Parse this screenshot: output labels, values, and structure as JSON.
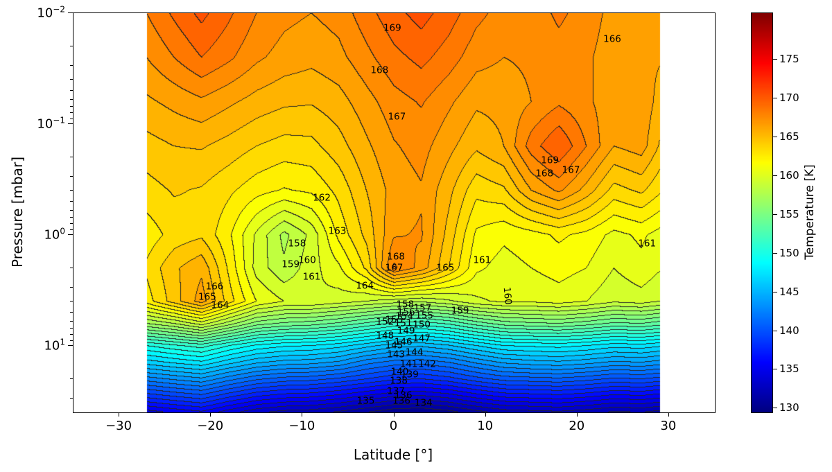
{
  "figure": {
    "background": "#ffffff",
    "contour_line_color": "#262626"
  },
  "chart_data": {
    "type": "heatmap",
    "title": "",
    "xlabel": "Latitude [°]",
    "ylabel": "Pressure [mbar]",
    "colorbar_label": "Temperature [K]",
    "x_axis": {
      "lim": [
        -35,
        35
      ],
      "ticks": [
        -30,
        -20,
        -10,
        0,
        10,
        20,
        30
      ],
      "tick_labels": [
        "−30",
        "−20",
        "−10",
        "0",
        "10",
        "20",
        "30"
      ]
    },
    "y_axis": {
      "scale": "log",
      "lim_log10": [
        -2,
        1.6
      ],
      "direction": "increasing-downward",
      "ticks": [
        {
          "base": "10",
          "exp": "−2",
          "log10": -2
        },
        {
          "base": "10",
          "exp": "−1",
          "log10": -1
        },
        {
          "base": "10",
          "exp": "0",
          "log10": 0
        },
        {
          "base": "10",
          "exp": "1",
          "log10": 1
        }
      ]
    },
    "colorbar": {
      "cmap": "jet",
      "vmin": 129.5,
      "vmax": 181,
      "ticks": [
        130,
        135,
        140,
        145,
        150,
        155,
        160,
        165,
        170,
        175
      ]
    },
    "contours": {
      "interval_K": 1
    },
    "grid": {
      "lat_range": [
        -27,
        29
      ],
      "lat": [
        -27,
        -24,
        -21,
        -18,
        -15,
        -12,
        -9,
        -6,
        -3,
        0,
        3,
        6,
        9,
        12,
        15,
        18,
        21,
        24,
        27,
        29
      ],
      "log10_pressure": [
        -2.0,
        -1.6,
        -1.2,
        -0.8,
        -0.4,
        0.0,
        0.3,
        0.6,
        0.8,
        1.0,
        1.15,
        1.3,
        1.45,
        1.6
      ],
      "temperature": [
        [
          168.0,
          169.2,
          170.3,
          169.2,
          168.0,
          167.3,
          167.0,
          167.4,
          168.6,
          169.7,
          170.4,
          169.5,
          168.3,
          167.6,
          167.5,
          168.2,
          167.6,
          166.6,
          166.2,
          166.6
        ],
        [
          167.0,
          168.0,
          169.0,
          168.2,
          167.2,
          166.6,
          166.3,
          166.7,
          167.7,
          168.7,
          169.3,
          168.5,
          167.4,
          167.0,
          167.2,
          167.6,
          167.2,
          166.4,
          166.3,
          166.1
        ],
        [
          165.8,
          166.3,
          166.8,
          166.2,
          165.6,
          165.2,
          165.1,
          165.6,
          166.6,
          167.6,
          168.1,
          167.2,
          166.2,
          166.3,
          167.0,
          167.8,
          167.2,
          166.4,
          166.8,
          165.6
        ],
        [
          164.6,
          165.0,
          165.1,
          164.6,
          164.0,
          163.6,
          163.7,
          164.6,
          165.8,
          166.9,
          167.4,
          166.3,
          165.2,
          166.0,
          168.5,
          170.0,
          168.0,
          166.0,
          166.5,
          164.9
        ],
        [
          163.6,
          164.1,
          163.9,
          163.2,
          162.4,
          161.9,
          162.2,
          163.3,
          165.0,
          166.4,
          166.9,
          165.3,
          163.3,
          163.8,
          166.0,
          167.2,
          165.6,
          163.6,
          164.2,
          163.2
        ],
        [
          162.4,
          163.4,
          163.8,
          162.2,
          159.8,
          157.7,
          159.3,
          162.3,
          164.3,
          166.9,
          167.1,
          164.6,
          161.8,
          161.2,
          161.6,
          162.2,
          161.7,
          160.7,
          161.2,
          160.6
        ],
        [
          163.2,
          164.8,
          165.8,
          162.8,
          159.6,
          158.2,
          159.6,
          160.8,
          163.2,
          168.2,
          166.6,
          164.0,
          161.2,
          160.6,
          161.0,
          161.4,
          161.0,
          160.0,
          160.7,
          160.1
        ],
        [
          162.5,
          164.5,
          166.5,
          163.5,
          161.0,
          160.0,
          160.0,
          159.5,
          159.0,
          158.5,
          158.2,
          158.8,
          159.8,
          160.2,
          160.2,
          160.5,
          160.0,
          159.2,
          159.5,
          159.0
        ],
        [
          157.0,
          158.0,
          159.5,
          157.5,
          155.5,
          154.8,
          154.5,
          153.8,
          152.8,
          151.8,
          151.5,
          152.2,
          153.5,
          154.5,
          154.8,
          155.0,
          154.5,
          153.8,
          154.0,
          153.5
        ],
        [
          150.0,
          150.8,
          151.5,
          150.0,
          148.8,
          148.2,
          148.0,
          147.4,
          146.4,
          145.4,
          145.2,
          145.9,
          147.0,
          148.0,
          148.2,
          148.4,
          148.0,
          147.4,
          147.6,
          147.2
        ],
        [
          146.5,
          147.2,
          147.8,
          146.4,
          145.2,
          144.6,
          144.4,
          143.8,
          142.4,
          141.6,
          141.4,
          142.0,
          143.2,
          144.2,
          144.6,
          144.8,
          144.4,
          143.8,
          144.0,
          143.6
        ],
        [
          142.5,
          143.2,
          143.8,
          142.4,
          141.2,
          140.6,
          140.4,
          139.8,
          139.0,
          138.2,
          138.0,
          138.6,
          139.6,
          140.4,
          140.6,
          140.8,
          140.4,
          139.8,
          140.0,
          139.6
        ],
        [
          138.5,
          139.2,
          139.8,
          138.4,
          137.2,
          136.6,
          136.4,
          135.8,
          135.0,
          134.2,
          134.0,
          134.6,
          135.6,
          136.4,
          136.6,
          136.8,
          136.4,
          135.8,
          136.0,
          135.6
        ],
        [
          134.5,
          135.2,
          135.8,
          134.4,
          133.2,
          132.6,
          132.4,
          131.8,
          131.0,
          130.2,
          130.0,
          130.6,
          131.6,
          132.4,
          132.6,
          132.8,
          132.4,
          131.8,
          132.0,
          131.6
        ]
      ]
    },
    "labels": [
      {
        "t": "169",
        "lat": -0.2,
        "lp": -1.86
      },
      {
        "t": "168",
        "lat": -1.6,
        "lp": -1.48
      },
      {
        "t": "167",
        "lat": 0.3,
        "lp": -1.06
      },
      {
        "t": "166",
        "lat": 23.8,
        "lp": -1.76
      },
      {
        "t": "169",
        "lat": 17.0,
        "lp": -0.67
      },
      {
        "t": "168",
        "lat": 16.4,
        "lp": -0.55
      },
      {
        "t": "167",
        "lat": 19.3,
        "lp": -0.58
      },
      {
        "t": "162",
        "lat": -7.9,
        "lp": -0.33
      },
      {
        "t": "163",
        "lat": -6.2,
        "lp": -0.03
      },
      {
        "t": "158",
        "lat": -10.6,
        "lp": 0.08
      },
      {
        "t": "159",
        "lat": -11.3,
        "lp": 0.27
      },
      {
        "t": "160",
        "lat": -9.5,
        "lp": 0.23
      },
      {
        "t": "161",
        "lat": -9.0,
        "lp": 0.38
      },
      {
        "t": "166",
        "lat": -19.6,
        "lp": 0.47
      },
      {
        "t": "165",
        "lat": -20.4,
        "lp": 0.56
      },
      {
        "t": "164",
        "lat": -19.0,
        "lp": 0.64
      },
      {
        "t": "168",
        "lat": 0.2,
        "lp": 0.2
      },
      {
        "t": "167",
        "lat": 0.0,
        "lp": 0.3
      },
      {
        "t": "164",
        "lat": -3.2,
        "lp": 0.46
      },
      {
        "t": "165",
        "lat": 5.6,
        "lp": 0.3
      },
      {
        "t": "161",
        "lat": 9.6,
        "lp": 0.23
      },
      {
        "t": "161",
        "lat": 27.6,
        "lp": 0.08
      },
      {
        "t": "160",
        "lat": 12.3,
        "lp": 0.55,
        "rot": 85
      },
      {
        "t": "159",
        "lat": 7.2,
        "lp": 0.69
      },
      {
        "t": "158",
        "lat": 1.2,
        "lp": 0.63
      },
      {
        "t": "157",
        "lat": 3.1,
        "lp": 0.66
      },
      {
        "t": "156",
        "lat": 1.3,
        "lp": 0.7
      },
      {
        "t": "155",
        "lat": 3.3,
        "lp": 0.73
      },
      {
        "t": "154",
        "lat": 1.1,
        "lp": 0.74
      },
      {
        "t": "153",
        "lat": 0.0,
        "lp": 0.77
      },
      {
        "t": "152",
        "lat": -1.0,
        "lp": 0.79
      },
      {
        "t": "151",
        "lat": 1.0,
        "lp": 0.8
      },
      {
        "t": "150",
        "lat": 3.0,
        "lp": 0.81
      },
      {
        "t": "149",
        "lat": 1.3,
        "lp": 0.87
      },
      {
        "t": "148",
        "lat": -1.0,
        "lp": 0.91
      },
      {
        "t": "147",
        "lat": 3.0,
        "lp": 0.94
      },
      {
        "t": "146",
        "lat": 1.0,
        "lp": 0.97
      },
      {
        "t": "145",
        "lat": 0.0,
        "lp": 1.0
      },
      {
        "t": "144",
        "lat": 2.2,
        "lp": 1.06
      },
      {
        "t": "143",
        "lat": 0.2,
        "lp": 1.08
      },
      {
        "t": "142",
        "lat": 3.6,
        "lp": 1.17
      },
      {
        "t": "141",
        "lat": 1.6,
        "lp": 1.17
      },
      {
        "t": "140",
        "lat": 0.6,
        "lp": 1.24
      },
      {
        "t": "139",
        "lat": 1.7,
        "lp": 1.26
      },
      {
        "t": "138",
        "lat": 0.5,
        "lp": 1.32
      },
      {
        "t": "137",
        "lat": 0.2,
        "lp": 1.41
      },
      {
        "t": "136",
        "lat": 1.0,
        "lp": 1.45
      },
      {
        "t": "136",
        "lat": 0.8,
        "lp": 1.5
      },
      {
        "t": "135",
        "lat": -3.1,
        "lp": 1.5
      },
      {
        "t": "134",
        "lat": 3.2,
        "lp": 1.52
      }
    ]
  }
}
